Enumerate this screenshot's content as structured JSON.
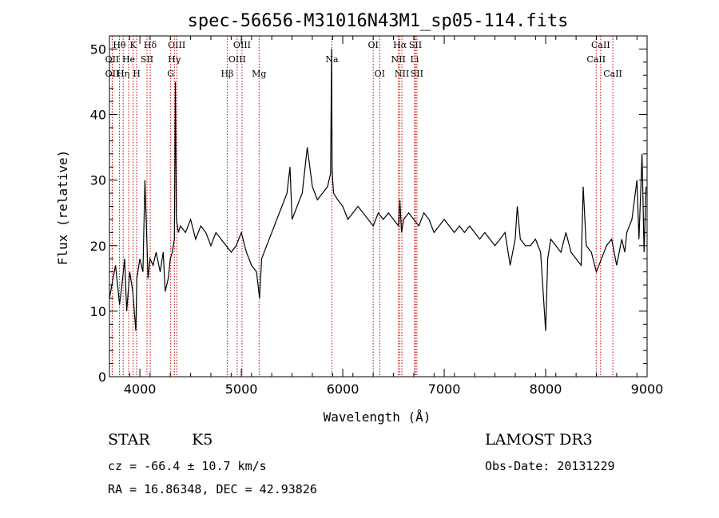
{
  "chart_data": {
    "type": "line",
    "title": "spec-56656-M31016N43M1_sp05-114.fits",
    "xlabel": "Wavelength (Å)",
    "ylabel": "Flux (relative)",
    "xlim": [
      3700,
      9000
    ],
    "ylim": [
      0,
      52
    ],
    "xticks": [
      4000,
      5000,
      6000,
      7000,
      8000,
      9000
    ],
    "yticks": [
      0,
      10,
      20,
      30,
      40,
      50
    ],
    "xtick_labels": [
      "4000",
      "5000",
      "6000",
      "7000",
      "8000",
      "9000"
    ],
    "ytick_labels": [
      "0",
      "10",
      "20",
      "30",
      "40",
      "50"
    ],
    "series": [
      {
        "name": "flux",
        "x": [
          3700,
          3760,
          3800,
          3830,
          3850,
          3870,
          3900,
          3930,
          3960,
          3970,
          4000,
          4030,
          4050,
          4080,
          4100,
          4130,
          4160,
          4200,
          4230,
          4250,
          4280,
          4300,
          4320,
          4340,
          4350,
          4360,
          4380,
          4400,
          4450,
          4500,
          4550,
          4600,
          4650,
          4700,
          4750,
          4800,
          4850,
          4900,
          4950,
          5000,
          5050,
          5100,
          5150,
          5180,
          5200,
          5250,
          5300,
          5350,
          5400,
          5450,
          5480,
          5500,
          5550,
          5600,
          5650,
          5700,
          5750,
          5800,
          5850,
          5880,
          5890,
          5895,
          5900,
          5910,
          5950,
          6000,
          6050,
          6100,
          6150,
          6200,
          6250,
          6300,
          6350,
          6400,
          6450,
          6500,
          6550,
          6563,
          6580,
          6600,
          6650,
          6700,
          6750,
          6800,
          6850,
          6900,
          6950,
          7000,
          7050,
          7100,
          7150,
          7200,
          7250,
          7300,
          7350,
          7400,
          7450,
          7500,
          7550,
          7600,
          7650,
          7700,
          7720,
          7750,
          7800,
          7850,
          7900,
          7950,
          8000,
          8020,
          8050,
          8100,
          8150,
          8200,
          8250,
          8300,
          8350,
          8370,
          8400,
          8450,
          8500,
          8550,
          8600,
          8650,
          8700,
          8750,
          8780,
          8800,
          8850,
          8900,
          8920,
          8950,
          8970,
          8990
        ],
        "values": [
          12,
          17,
          11,
          15,
          18,
          10,
          16,
          13,
          7,
          15,
          18,
          16,
          30,
          15,
          18,
          17,
          19,
          16,
          19,
          13,
          15,
          18,
          19,
          21,
          45,
          24,
          22,
          23,
          22,
          24,
          21,
          23,
          22,
          20,
          22,
          21,
          20,
          19,
          20,
          22,
          19,
          17,
          16,
          12,
          18,
          20,
          22,
          24,
          26,
          28,
          32,
          24,
          26,
          28,
          35,
          29,
          27,
          28,
          29,
          31,
          50,
          32,
          30,
          28,
          27,
          26,
          24,
          25,
          26,
          25,
          24,
          23,
          25,
          24,
          25,
          24,
          23,
          27,
          22,
          24,
          25,
          24,
          23,
          25,
          24,
          22,
          23,
          24,
          23,
          22,
          23,
          22,
          23,
          22,
          21,
          22,
          21,
          20,
          21,
          22,
          17,
          21,
          26,
          21,
          20,
          20,
          21,
          19,
          7,
          18,
          21,
          20,
          19,
          22,
          19,
          18,
          17,
          29,
          20,
          19,
          16,
          18,
          20,
          21,
          17,
          21,
          19,
          22,
          24,
          30,
          21,
          34,
          19,
          29
        ]
      }
    ],
    "line_markers": [
      {
        "label": "Hθ",
        "x": 3798,
        "row": 0
      },
      {
        "label": "K",
        "x": 3933,
        "row": 0
      },
      {
        "label": "Hδ",
        "x": 4102,
        "row": 0
      },
      {
        "label": "OIII",
        "x": 4363,
        "row": 0
      },
      {
        "label": "OIII",
        "x": 5007,
        "row": 0
      },
      {
        "label": "OI",
        "x": 6300,
        "row": 0
      },
      {
        "label": "Hα",
        "x": 6563,
        "row": 0
      },
      {
        "label": "SII",
        "x": 6716,
        "row": 0
      },
      {
        "label": "CaII",
        "x": 8542,
        "row": 0
      },
      {
        "label": "OII",
        "x": 3727,
        "row": 1
      },
      {
        "label": "He",
        "x": 3889,
        "row": 1
      },
      {
        "label": "SII",
        "x": 4070,
        "row": 1
      },
      {
        "label": "Hγ",
        "x": 4340,
        "row": 1
      },
      {
        "label": "OIII",
        "x": 4959,
        "row": 1
      },
      {
        "label": "Na",
        "x": 5893,
        "row": 1
      },
      {
        "label": "NII",
        "x": 6548,
        "row": 1
      },
      {
        "label": "Li",
        "x": 6708,
        "row": 1
      },
      {
        "label": "CaII",
        "x": 8498,
        "row": 1
      },
      {
        "label": "OII",
        "x": 3727,
        "row": 2
      },
      {
        "label": "Hη",
        "x": 3835,
        "row": 2
      },
      {
        "label": "H",
        "x": 3968,
        "row": 2
      },
      {
        "label": "G",
        "x": 4304,
        "row": 2
      },
      {
        "label": "Hβ",
        "x": 4861,
        "row": 2
      },
      {
        "label": "Mg",
        "x": 5175,
        "row": 2
      },
      {
        "label": "OI",
        "x": 6364,
        "row": 2
      },
      {
        "label": "NII",
        "x": 6583,
        "row": 2
      },
      {
        "label": "SII",
        "x": 6731,
        "row": 2
      },
      {
        "label": "CaII",
        "x": 8662,
        "row": 2
      }
    ],
    "grid": false,
    "legend": "none"
  },
  "info": {
    "object_class": "STAR",
    "subclass": "K5",
    "survey": "LAMOST DR3",
    "redshift": "cz = -66.4 ± 10.7 km/s",
    "obs_date": "Obs-Date: 20131229",
    "coords": "RA =  16.86348, DEC =  42.93826"
  },
  "colors": {
    "axis": "#000000",
    "spectrum": "#000000",
    "line_marker": "#cc0000"
  }
}
